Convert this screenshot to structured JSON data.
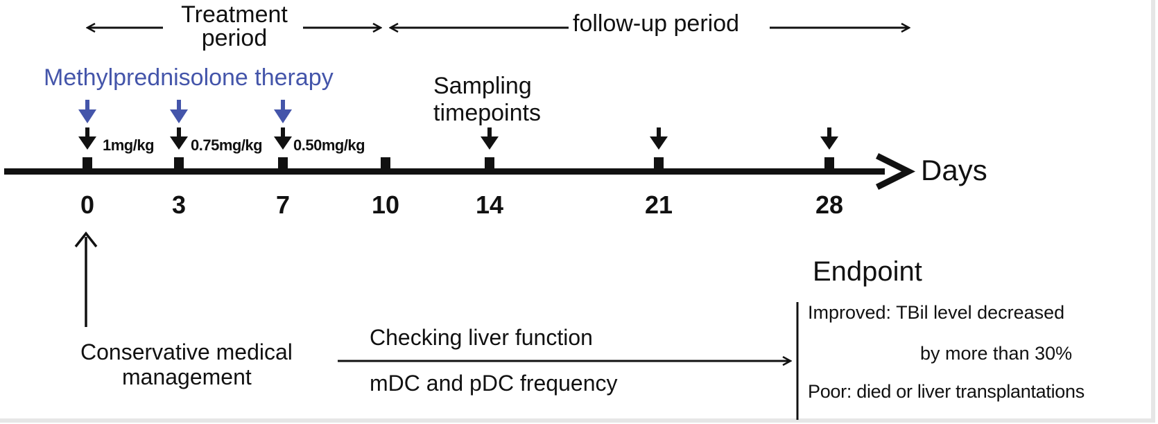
{
  "periods": {
    "treatment_line1": "Treatment",
    "treatment_line2": "period",
    "followup": "follow-up period"
  },
  "therapy": {
    "label": "Methylprednisolone therapy",
    "doses": [
      "1mg/kg",
      "0.75mg/kg",
      "0.50mg/kg"
    ]
  },
  "sampling": {
    "line1": "Sampling",
    "line2": "timepoints"
  },
  "timeline": {
    "axis_label": "Days",
    "days": [
      "0",
      "3",
      "7",
      "10",
      "14",
      "21",
      "28"
    ]
  },
  "management": {
    "line1": "Conservative medical",
    "line2": "management"
  },
  "checking": {
    "line1": "Checking liver function",
    "line2": "mDC and pDC frequency"
  },
  "endpoint": {
    "title": "Endpoint",
    "improved_line1": "Improved: TBil level decreased",
    "improved_line2": "by more than 30%",
    "poor": "Poor:  died or liver transplantations"
  },
  "colors": {
    "therapy_blue": "#4455aa",
    "ink": "#111111"
  }
}
